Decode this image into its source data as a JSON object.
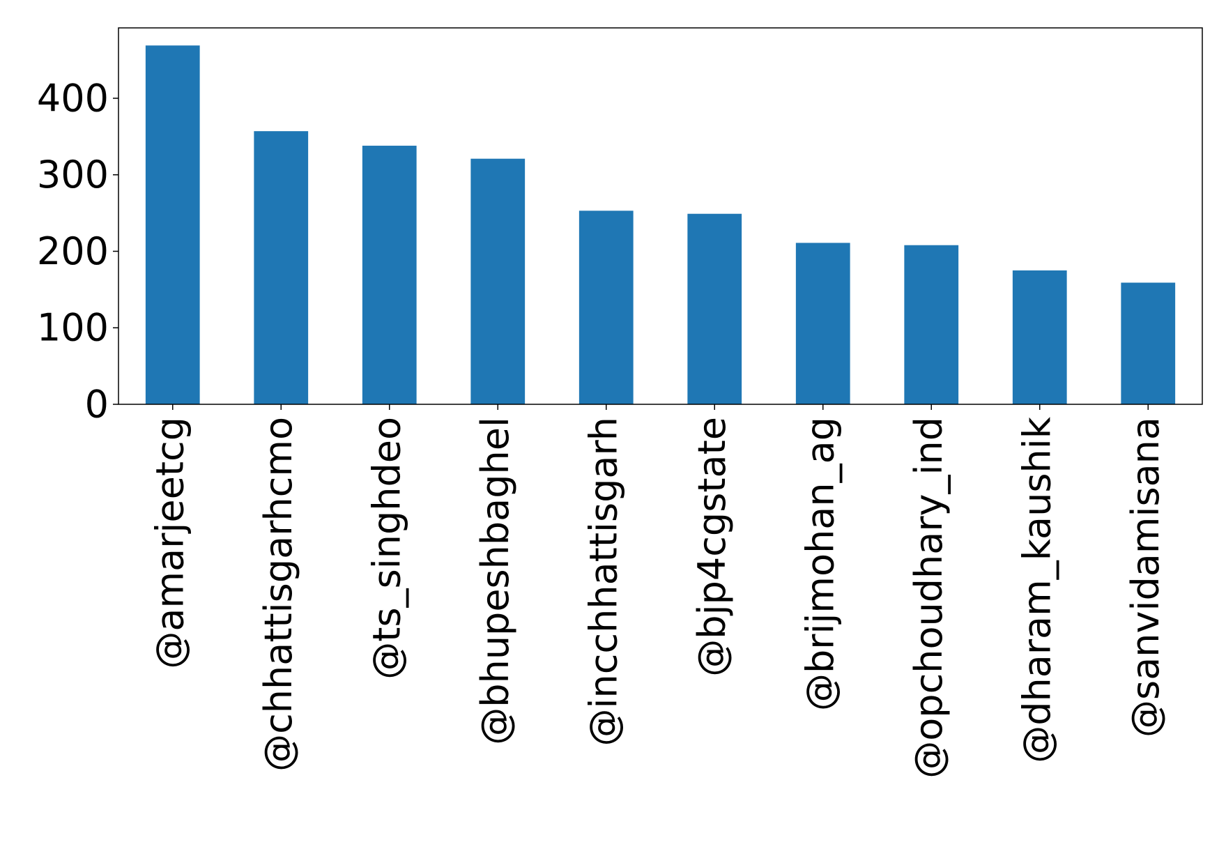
{
  "chart_data": {
    "type": "bar",
    "categories": [
      "@amarjeetcg",
      "@chhattisgarhcmo",
      "@ts_singhdeo",
      "@bhupeshbaghel",
      "@incchhattisgarh",
      "@bjp4cgstate",
      "@brijmohan_ag",
      "@opchoudhary_ind",
      "@dharam_kaushik",
      "@sanvidamisana"
    ],
    "values": [
      469,
      357,
      338,
      321,
      253,
      249,
      211,
      208,
      175,
      159
    ],
    "title": "",
    "xlabel": "",
    "ylabel": "",
    "ylim": [
      0,
      492
    ],
    "yticks": [
      0,
      100,
      200,
      300,
      400
    ],
    "yticks_labels": [
      "0",
      "100",
      "200",
      "300",
      "400"
    ],
    "bar_color": "#1f77b4",
    "grid": false,
    "legend": "none",
    "x_tick_rotation": "vertical"
  }
}
